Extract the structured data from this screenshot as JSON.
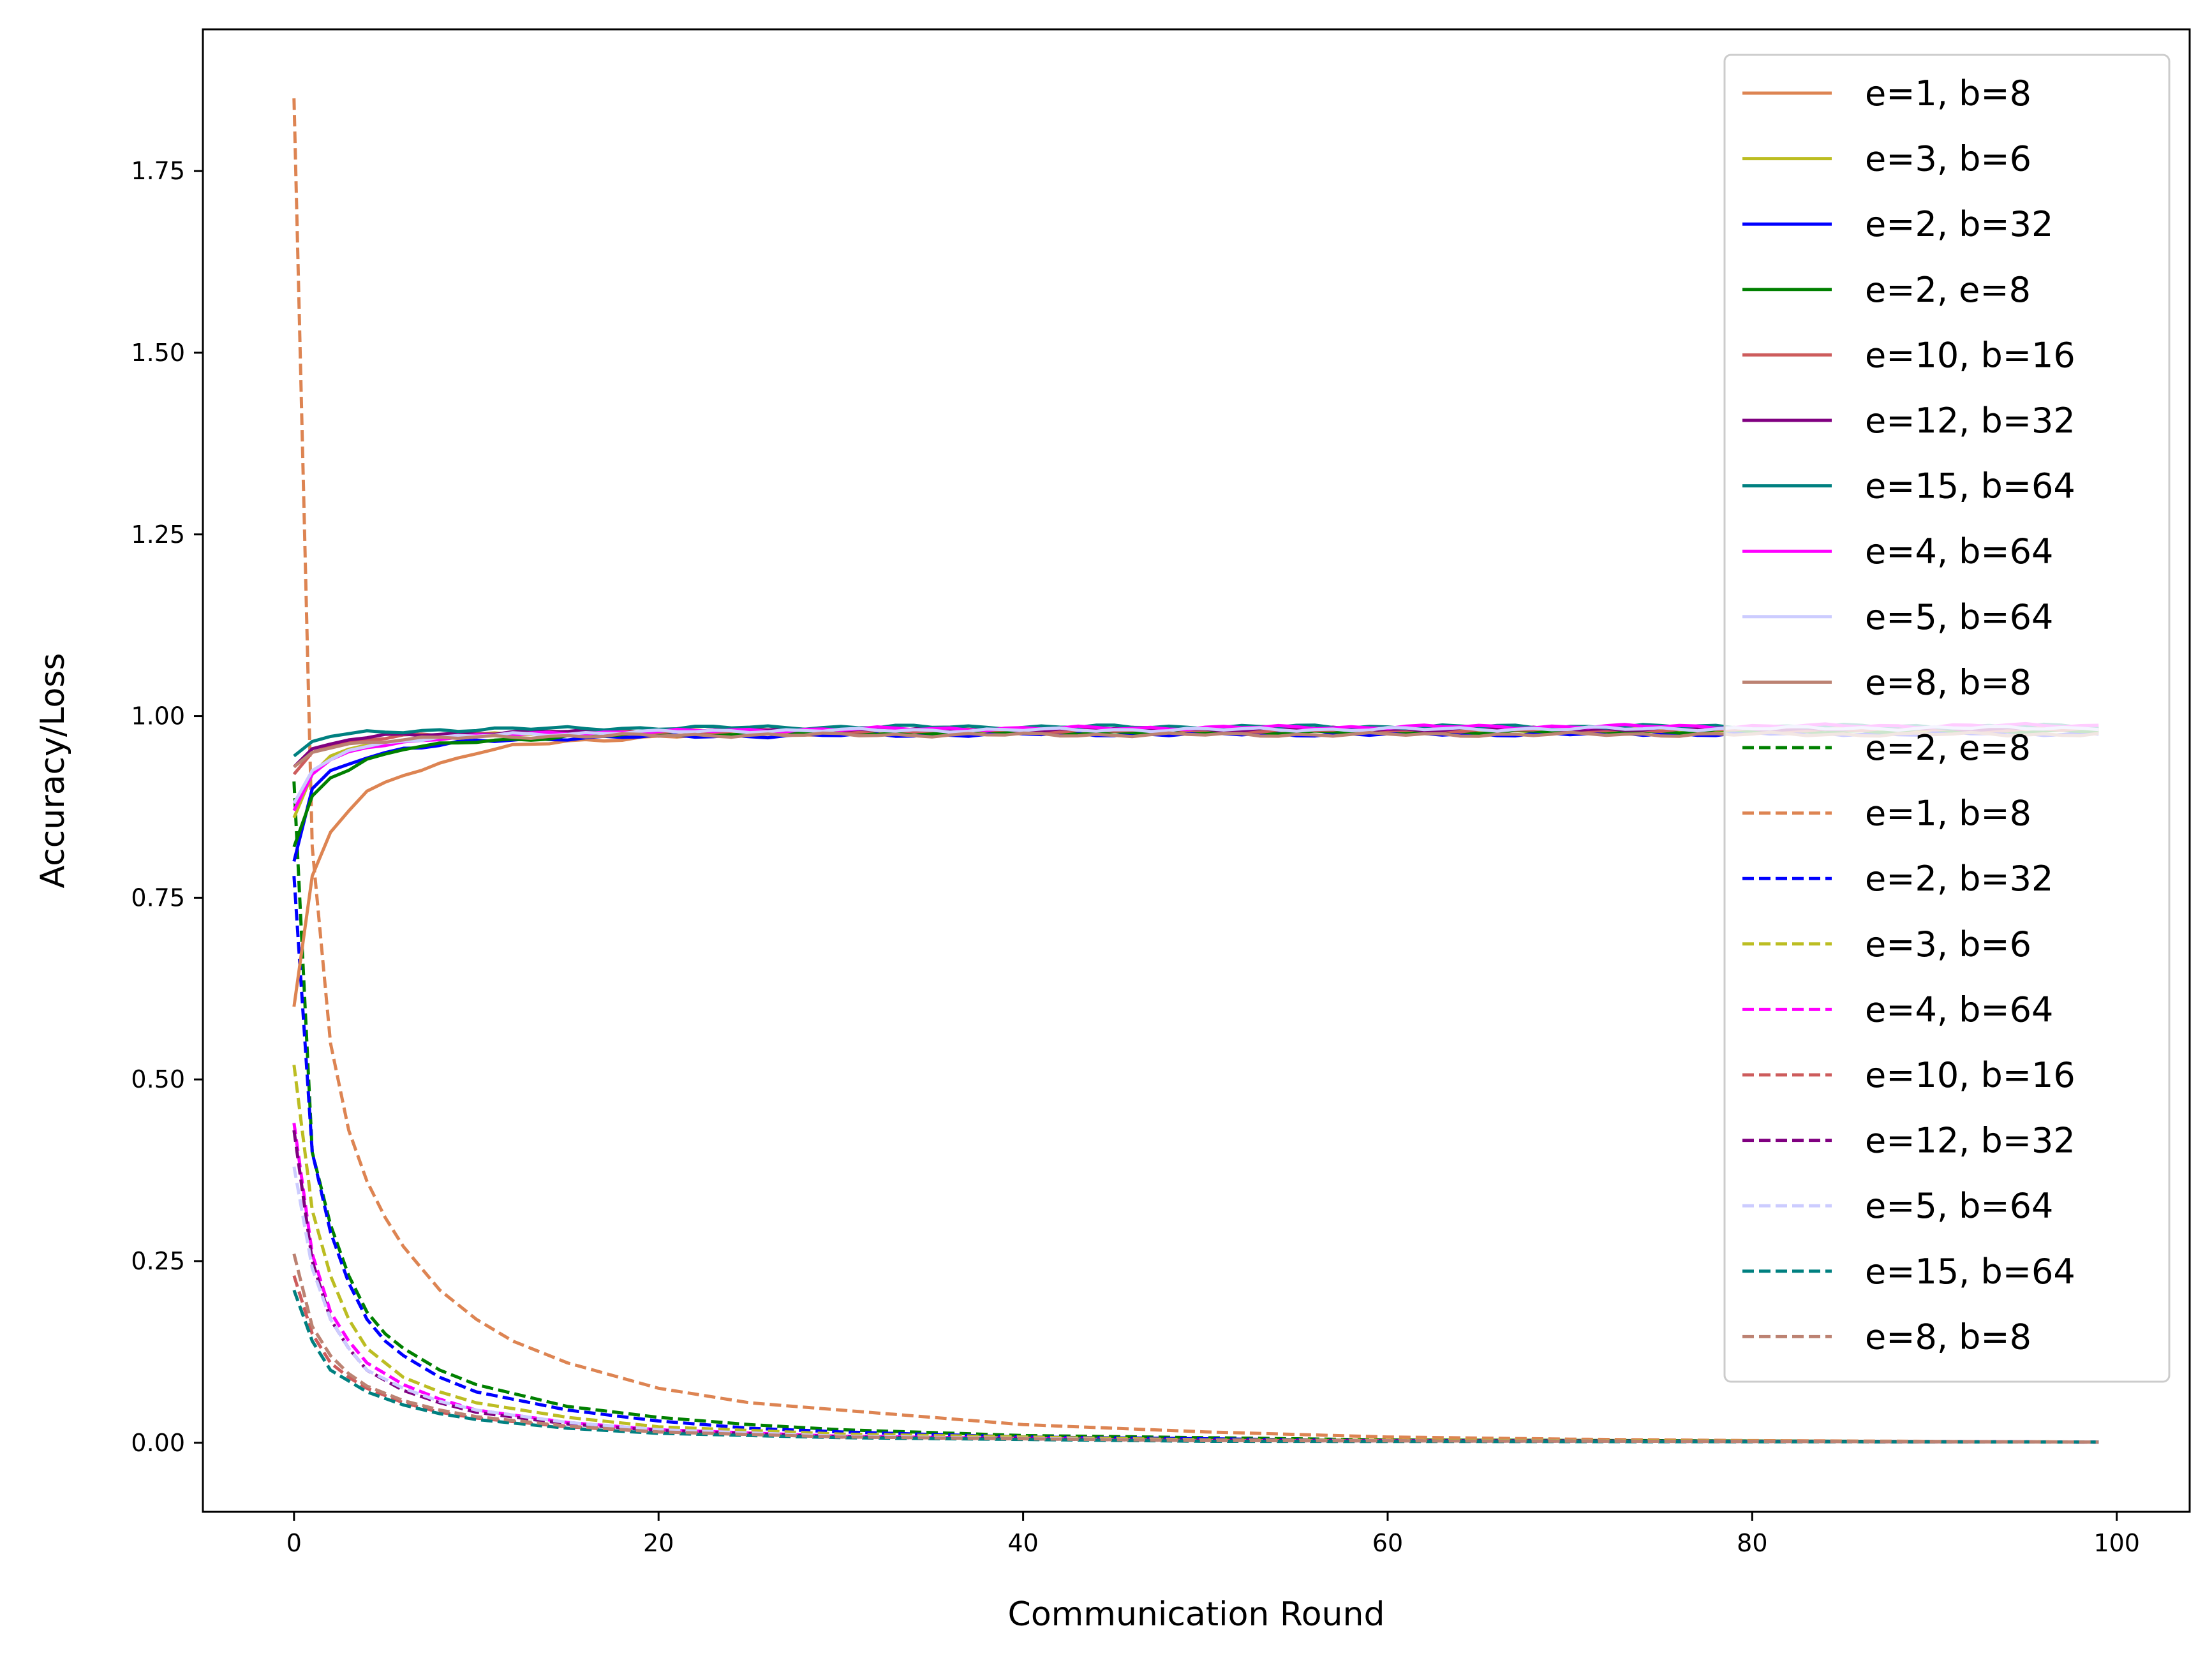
{
  "chart_data": {
    "type": "line",
    "title": "",
    "xlabel": "Communication Round",
    "ylabel": "Accuracy/Loss",
    "xlim": [
      -5,
      104
    ],
    "ylim": [
      -0.095,
      1.945
    ],
    "xticks": [
      0,
      20,
      40,
      60,
      80,
      100
    ],
    "yticks": [
      0.0,
      0.25,
      0.5,
      0.75,
      1.0,
      1.25,
      1.5,
      1.75
    ],
    "xtick_labels": [
      "0",
      "20",
      "40",
      "60",
      "80",
      "100"
    ],
    "ytick_labels": [
      "0.00",
      "0.25",
      "0.50",
      "0.75",
      "1.00",
      "1.25",
      "1.50",
      "1.75"
    ],
    "grid": false,
    "legend_position": "upper right",
    "x_range": [
      0,
      99
    ],
    "series": [
      {
        "name": "e=1, b=8",
        "color": "#dd8452",
        "dash": "solid",
        "kind": "acc",
        "points": [
          [
            0,
            0.6
          ],
          [
            1,
            0.78
          ],
          [
            2,
            0.84
          ],
          [
            3,
            0.87
          ],
          [
            4,
            0.895
          ],
          [
            6,
            0.92
          ],
          [
            8,
            0.935
          ],
          [
            10,
            0.95
          ],
          [
            12,
            0.958
          ],
          [
            15,
            0.965
          ],
          [
            20,
            0.972
          ],
          [
            30,
            0.977
          ],
          [
            50,
            0.979
          ],
          [
            99,
            0.98
          ]
        ]
      },
      {
        "name": "e=3, b=6",
        "color": "#bcbd22",
        "dash": "solid",
        "kind": "acc",
        "points": [
          [
            0,
            0.86
          ],
          [
            1,
            0.92
          ],
          [
            2,
            0.945
          ],
          [
            4,
            0.96
          ],
          [
            8,
            0.972
          ],
          [
            15,
            0.977
          ],
          [
            30,
            0.98
          ],
          [
            99,
            0.982
          ]
        ]
      },
      {
        "name": "e=2, b=32",
        "color": "#0000ff",
        "dash": "solid",
        "kind": "acc",
        "points": [
          [
            0,
            0.8
          ],
          [
            1,
            0.9
          ],
          [
            2,
            0.925
          ],
          [
            4,
            0.945
          ],
          [
            6,
            0.955
          ],
          [
            10,
            0.965
          ],
          [
            15,
            0.97
          ],
          [
            20,
            0.972
          ],
          [
            40,
            0.975
          ],
          [
            60,
            0.975
          ],
          [
            99,
            0.976
          ]
        ]
      },
      {
        "name": "e=2, e=8",
        "color": "#008000",
        "dash": "solid",
        "kind": "acc",
        "points": [
          [
            0,
            0.82
          ],
          [
            1,
            0.89
          ],
          [
            2,
            0.915
          ],
          [
            4,
            0.94
          ],
          [
            6,
            0.955
          ],
          [
            10,
            0.965
          ],
          [
            15,
            0.972
          ],
          [
            25,
            0.977
          ],
          [
            99,
            0.98
          ]
        ]
      },
      {
        "name": "e=10, b=16",
        "color": "#cd5c5c",
        "dash": "solid",
        "kind": "acc",
        "points": [
          [
            0,
            0.92
          ],
          [
            1,
            0.95
          ],
          [
            3,
            0.965
          ],
          [
            6,
            0.972
          ],
          [
            12,
            0.977
          ],
          [
            25,
            0.98
          ],
          [
            99,
            0.982
          ]
        ]
      },
      {
        "name": "e=12, b=32",
        "color": "#800080",
        "dash": "solid",
        "kind": "acc",
        "points": [
          [
            0,
            0.93
          ],
          [
            1,
            0.955
          ],
          [
            3,
            0.968
          ],
          [
            6,
            0.974
          ],
          [
            12,
            0.978
          ],
          [
            25,
            0.981
          ],
          [
            99,
            0.983
          ]
        ]
      },
      {
        "name": "e=15, b=64",
        "color": "#008080",
        "dash": "solid",
        "kind": "acc",
        "points": [
          [
            0,
            0.945
          ],
          [
            1,
            0.965
          ],
          [
            2,
            0.972
          ],
          [
            4,
            0.977
          ],
          [
            8,
            0.981
          ],
          [
            15,
            0.983
          ],
          [
            30,
            0.985
          ],
          [
            99,
            0.986
          ]
        ]
      },
      {
        "name": "e=4, b=64",
        "color": "#ff00ff",
        "dash": "solid",
        "kind": "acc",
        "points": [
          [
            0,
            0.87
          ],
          [
            1,
            0.92
          ],
          [
            2,
            0.94
          ],
          [
            4,
            0.958
          ],
          [
            8,
            0.97
          ],
          [
            15,
            0.977
          ],
          [
            30,
            0.982
          ],
          [
            60,
            0.985
          ],
          [
            99,
            0.987
          ]
        ]
      },
      {
        "name": "e=5, b=64",
        "color": "#ccccff",
        "dash": "solid",
        "kind": "acc",
        "points": [
          [
            0,
            0.88
          ],
          [
            1,
            0.925
          ],
          [
            3,
            0.955
          ],
          [
            6,
            0.967
          ],
          [
            12,
            0.975
          ],
          [
            25,
            0.98
          ],
          [
            99,
            0.984
          ]
        ]
      },
      {
        "name": "e=8, b=8",
        "color": "#bc8272",
        "dash": "solid",
        "kind": "acc",
        "points": [
          [
            0,
            0.93
          ],
          [
            1,
            0.95
          ],
          [
            3,
            0.962
          ],
          [
            6,
            0.968
          ],
          [
            12,
            0.972
          ],
          [
            25,
            0.974
          ],
          [
            99,
            0.975
          ]
        ]
      },
      {
        "name": "e=2, e=8",
        "color": "#008000",
        "dash": "dashed",
        "kind": "loss",
        "points": [
          [
            0,
            0.91
          ],
          [
            1,
            0.4
          ],
          [
            2,
            0.3
          ],
          [
            3,
            0.23
          ],
          [
            4,
            0.18
          ],
          [
            5,
            0.15
          ],
          [
            6,
            0.13
          ],
          [
            8,
            0.1
          ],
          [
            10,
            0.08
          ],
          [
            15,
            0.05
          ],
          [
            20,
            0.035
          ],
          [
            25,
            0.025
          ],
          [
            30,
            0.018
          ],
          [
            40,
            0.01
          ],
          [
            60,
            0.004
          ],
          [
            99,
            0.001
          ]
        ]
      },
      {
        "name": "e=1, b=8",
        "color": "#dd8452",
        "dash": "dashed",
        "kind": "loss",
        "points": [
          [
            0,
            1.85
          ],
          [
            1,
            0.82
          ],
          [
            2,
            0.55
          ],
          [
            3,
            0.43
          ],
          [
            4,
            0.36
          ],
          [
            5,
            0.31
          ],
          [
            6,
            0.27
          ],
          [
            8,
            0.21
          ],
          [
            10,
            0.17
          ],
          [
            12,
            0.14
          ],
          [
            15,
            0.11
          ],
          [
            20,
            0.075
          ],
          [
            25,
            0.055
          ],
          [
            30,
            0.045
          ],
          [
            35,
            0.035
          ],
          [
            40,
            0.025
          ],
          [
            50,
            0.015
          ],
          [
            60,
            0.008
          ],
          [
            70,
            0.005
          ],
          [
            80,
            0.003
          ],
          [
            99,
            0.001
          ]
        ]
      },
      {
        "name": "e=2, b=32",
        "color": "#0000ff",
        "dash": "dashed",
        "kind": "loss",
        "points": [
          [
            0,
            0.78
          ],
          [
            1,
            0.4
          ],
          [
            2,
            0.29
          ],
          [
            3,
            0.22
          ],
          [
            4,
            0.17
          ],
          [
            5,
            0.14
          ],
          [
            6,
            0.12
          ],
          [
            8,
            0.09
          ],
          [
            10,
            0.07
          ],
          [
            15,
            0.045
          ],
          [
            20,
            0.03
          ],
          [
            25,
            0.02
          ],
          [
            30,
            0.015
          ],
          [
            40,
            0.008
          ],
          [
            60,
            0.003
          ],
          [
            99,
            0.001
          ]
        ]
      },
      {
        "name": "e=3, b=6",
        "color": "#bcbd22",
        "dash": "dashed",
        "kind": "loss",
        "points": [
          [
            0,
            0.52
          ],
          [
            1,
            0.32
          ],
          [
            2,
            0.23
          ],
          [
            3,
            0.17
          ],
          [
            4,
            0.13
          ],
          [
            5,
            0.11
          ],
          [
            6,
            0.09
          ],
          [
            8,
            0.07
          ],
          [
            10,
            0.055
          ],
          [
            15,
            0.035
          ],
          [
            20,
            0.022
          ],
          [
            30,
            0.012
          ],
          [
            50,
            0.004
          ],
          [
            99,
            0.001
          ]
        ]
      },
      {
        "name": "e=4, b=64",
        "color": "#ff00ff",
        "dash": "dashed",
        "kind": "loss",
        "points": [
          [
            0,
            0.44
          ],
          [
            1,
            0.26
          ],
          [
            2,
            0.18
          ],
          [
            3,
            0.14
          ],
          [
            4,
            0.11
          ],
          [
            6,
            0.08
          ],
          [
            8,
            0.06
          ],
          [
            10,
            0.045
          ],
          [
            15,
            0.028
          ],
          [
            20,
            0.018
          ],
          [
            30,
            0.009
          ],
          [
            50,
            0.003
          ],
          [
            99,
            0.001
          ]
        ]
      },
      {
        "name": "e=10, b=16",
        "color": "#cd5c5c",
        "dash": "dashed",
        "kind": "loss",
        "points": [
          [
            0,
            0.23
          ],
          [
            1,
            0.15
          ],
          [
            2,
            0.11
          ],
          [
            3,
            0.09
          ],
          [
            4,
            0.075
          ],
          [
            6,
            0.055
          ],
          [
            8,
            0.042
          ],
          [
            10,
            0.034
          ],
          [
            15,
            0.022
          ],
          [
            20,
            0.015
          ],
          [
            30,
            0.008
          ],
          [
            50,
            0.003
          ],
          [
            99,
            0.001
          ]
        ]
      },
      {
        "name": "e=12, b=32",
        "color": "#800080",
        "dash": "dashed",
        "kind": "loss",
        "points": [
          [
            0,
            0.43
          ],
          [
            1,
            0.25
          ],
          [
            2,
            0.17
          ],
          [
            3,
            0.13
          ],
          [
            4,
            0.1
          ],
          [
            6,
            0.072
          ],
          [
            8,
            0.055
          ],
          [
            10,
            0.042
          ],
          [
            15,
            0.026
          ],
          [
            20,
            0.017
          ],
          [
            30,
            0.008
          ],
          [
            50,
            0.003
          ],
          [
            99,
            0.001
          ]
        ]
      },
      {
        "name": "e=5, b=64",
        "color": "#ccccff",
        "dash": "dashed",
        "kind": "loss",
        "points": [
          [
            0,
            0.38
          ],
          [
            1,
            0.24
          ],
          [
            2,
            0.17
          ],
          [
            3,
            0.13
          ],
          [
            4,
            0.1
          ],
          [
            6,
            0.075
          ],
          [
            8,
            0.057
          ],
          [
            10,
            0.045
          ],
          [
            15,
            0.028
          ],
          [
            20,
            0.018
          ],
          [
            30,
            0.009
          ],
          [
            50,
            0.003
          ],
          [
            99,
            0.001
          ]
        ]
      },
      {
        "name": "e=15, b=64",
        "color": "#008080",
        "dash": "dashed",
        "kind": "loss",
        "points": [
          [
            0,
            0.21
          ],
          [
            1,
            0.14
          ],
          [
            2,
            0.1
          ],
          [
            3,
            0.085
          ],
          [
            4,
            0.07
          ],
          [
            6,
            0.052
          ],
          [
            8,
            0.04
          ],
          [
            10,
            0.032
          ],
          [
            15,
            0.02
          ],
          [
            20,
            0.013
          ],
          [
            30,
            0.007
          ],
          [
            50,
            0.002
          ],
          [
            99,
            0.001
          ]
        ]
      },
      {
        "name": "e=8, b=8",
        "color": "#bc8272",
        "dash": "dashed",
        "kind": "loss",
        "points": [
          [
            0,
            0.26
          ],
          [
            1,
            0.16
          ],
          [
            2,
            0.12
          ],
          [
            3,
            0.095
          ],
          [
            4,
            0.078
          ],
          [
            6,
            0.058
          ],
          [
            8,
            0.045
          ],
          [
            10,
            0.036
          ],
          [
            15,
            0.023
          ],
          [
            20,
            0.015
          ],
          [
            30,
            0.008
          ],
          [
            50,
            0.003
          ],
          [
            99,
            0.001
          ]
        ]
      }
    ]
  }
}
